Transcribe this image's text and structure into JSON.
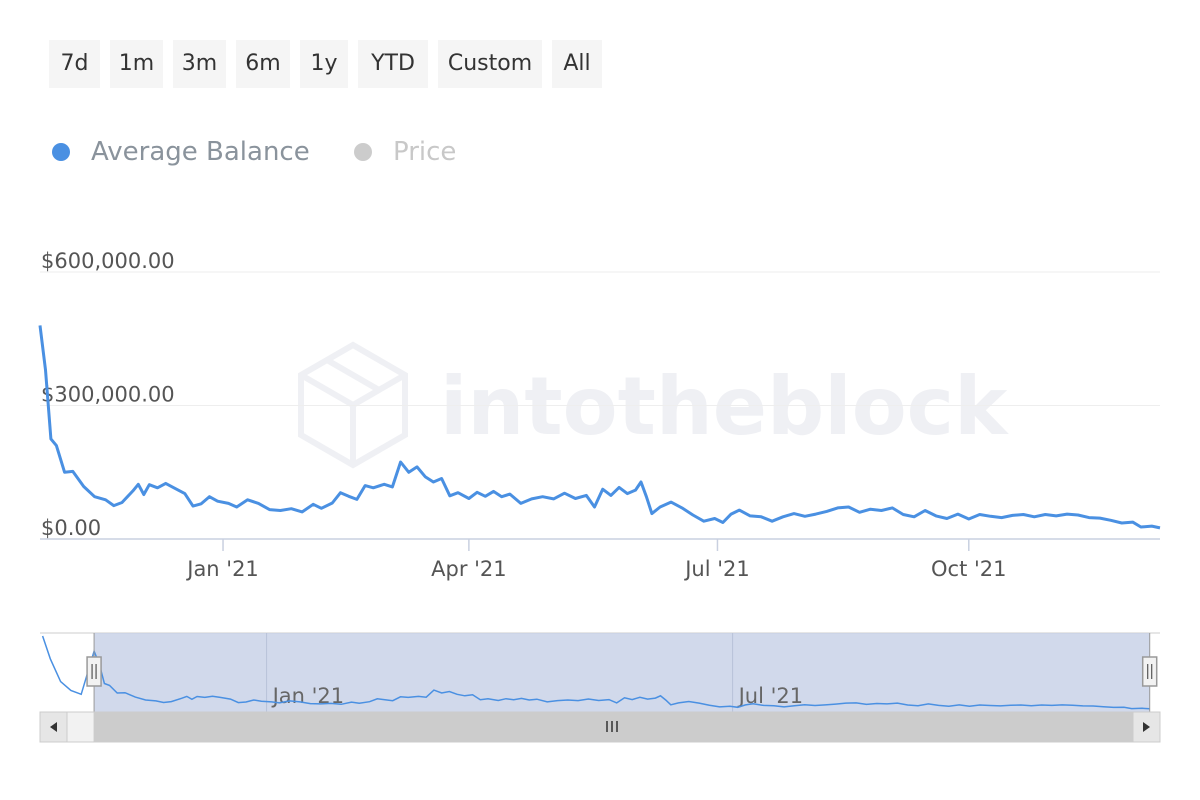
{
  "range_selector": {
    "buttons": [
      "7d",
      "1m",
      "3m",
      "6m",
      "1y",
      "YTD",
      "Custom",
      "All"
    ]
  },
  "legend": {
    "items": [
      {
        "label": "Average Balance",
        "color": "#4a90e2",
        "text_color": "#8a939c",
        "active": true
      },
      {
        "label": "Price",
        "color": "#cccccc",
        "text_color": "#c8c8c8",
        "active": false
      }
    ]
  },
  "watermark": "intotheblock",
  "chart_data": {
    "type": "line",
    "title": "",
    "xlabel": "",
    "ylabel": "",
    "grid": true,
    "legend_position": "top-left",
    "x_range": [
      "2020-10-26",
      "2021-12-10"
    ],
    "ylim": [
      0,
      600000
    ],
    "y_ticks": [
      {
        "value": 0,
        "label": "$0.00"
      },
      {
        "value": 300000,
        "label": "$300,000.00"
      },
      {
        "value": 600000,
        "label": "$600,000.00"
      }
    ],
    "x_ticks": [
      {
        "date": "2021-01-01",
        "label": "Jan '21"
      },
      {
        "date": "2021-04-01",
        "label": "Apr '21"
      },
      {
        "date": "2021-07-01",
        "label": "Jul '21"
      },
      {
        "date": "2021-10-01",
        "label": "Oct '21"
      }
    ],
    "series": [
      {
        "name": "Average Balance",
        "color": "#4a90e2",
        "points": [
          [
            "2020-10-26",
            480000
          ],
          [
            "2020-10-28",
            380000
          ],
          [
            "2020-10-30",
            225000
          ],
          [
            "2020-11-01",
            210000
          ],
          [
            "2020-11-04",
            150000
          ],
          [
            "2020-11-07",
            152000
          ],
          [
            "2020-11-11",
            118000
          ],
          [
            "2020-11-15",
            95000
          ],
          [
            "2020-11-19",
            88000
          ],
          [
            "2020-11-22",
            75000
          ],
          [
            "2020-11-25",
            82000
          ],
          [
            "2020-11-29",
            108000
          ],
          [
            "2020-12-01",
            123000
          ],
          [
            "2020-12-03",
            100000
          ],
          [
            "2020-12-05",
            122000
          ],
          [
            "2020-12-08",
            115000
          ],
          [
            "2020-12-11",
            125000
          ],
          [
            "2020-12-14",
            115000
          ],
          [
            "2020-12-18",
            102000
          ],
          [
            "2020-12-21",
            74000
          ],
          [
            "2020-12-24",
            79000
          ],
          [
            "2020-12-27",
            95000
          ],
          [
            "2020-12-30",
            85000
          ],
          [
            "2021-01-03",
            80000
          ],
          [
            "2021-01-06",
            72000
          ],
          [
            "2021-01-10",
            88000
          ],
          [
            "2021-01-14",
            80000
          ],
          [
            "2021-01-18",
            66000
          ],
          [
            "2021-01-22",
            64000
          ],
          [
            "2021-01-26",
            68000
          ],
          [
            "2021-01-30",
            61000
          ],
          [
            "2021-02-03",
            78000
          ],
          [
            "2021-02-06",
            69000
          ],
          [
            "2021-02-10",
            81000
          ],
          [
            "2021-02-13",
            104000
          ],
          [
            "2021-02-16",
            96000
          ],
          [
            "2021-02-19",
            89000
          ],
          [
            "2021-02-22",
            120000
          ],
          [
            "2021-02-25",
            115000
          ],
          [
            "2021-03-01",
            123000
          ],
          [
            "2021-03-04",
            117000
          ],
          [
            "2021-03-07",
            173000
          ],
          [
            "2021-03-10",
            150000
          ],
          [
            "2021-03-13",
            162000
          ],
          [
            "2021-03-16",
            140000
          ],
          [
            "2021-03-19",
            128000
          ],
          [
            "2021-03-22",
            136000
          ],
          [
            "2021-03-25",
            97000
          ],
          [
            "2021-03-28",
            104000
          ],
          [
            "2021-04-01",
            91000
          ],
          [
            "2021-04-04",
            105000
          ],
          [
            "2021-04-07",
            96000
          ],
          [
            "2021-04-10",
            107000
          ],
          [
            "2021-04-13",
            95000
          ],
          [
            "2021-04-16",
            101000
          ],
          [
            "2021-04-20",
            80000
          ],
          [
            "2021-04-24",
            90000
          ],
          [
            "2021-04-28",
            95000
          ],
          [
            "2021-05-02",
            90000
          ],
          [
            "2021-05-06",
            103000
          ],
          [
            "2021-05-10",
            91000
          ],
          [
            "2021-05-14",
            98000
          ],
          [
            "2021-05-17",
            72000
          ],
          [
            "2021-05-20",
            112000
          ],
          [
            "2021-05-23",
            98000
          ],
          [
            "2021-05-26",
            116000
          ],
          [
            "2021-05-29",
            102000
          ],
          [
            "2021-06-01",
            110000
          ],
          [
            "2021-06-03",
            128000
          ],
          [
            "2021-06-05",
            95000
          ],
          [
            "2021-06-07",
            57000
          ],
          [
            "2021-06-10",
            72000
          ],
          [
            "2021-06-14",
            83000
          ],
          [
            "2021-06-18",
            70000
          ],
          [
            "2021-06-22",
            54000
          ],
          [
            "2021-06-26",
            40000
          ],
          [
            "2021-06-30",
            46000
          ],
          [
            "2021-07-03",
            37000
          ],
          [
            "2021-07-06",
            56000
          ],
          [
            "2021-07-09",
            65000
          ],
          [
            "2021-07-13",
            52000
          ],
          [
            "2021-07-17",
            50000
          ],
          [
            "2021-07-21",
            40000
          ],
          [
            "2021-07-25",
            50000
          ],
          [
            "2021-07-29",
            57000
          ],
          [
            "2021-08-02",
            51000
          ],
          [
            "2021-08-06",
            56000
          ],
          [
            "2021-08-10",
            62000
          ],
          [
            "2021-08-14",
            70000
          ],
          [
            "2021-08-18",
            72000
          ],
          [
            "2021-08-22",
            60000
          ],
          [
            "2021-08-26",
            67000
          ],
          [
            "2021-08-30",
            64000
          ],
          [
            "2021-09-03",
            70000
          ],
          [
            "2021-09-07",
            55000
          ],
          [
            "2021-09-11",
            50000
          ],
          [
            "2021-09-15",
            64000
          ],
          [
            "2021-09-19",
            52000
          ],
          [
            "2021-09-23",
            46000
          ],
          [
            "2021-09-27",
            56000
          ],
          [
            "2021-10-01",
            45000
          ],
          [
            "2021-10-05",
            55000
          ],
          [
            "2021-10-09",
            51000
          ],
          [
            "2021-10-13",
            48000
          ],
          [
            "2021-10-17",
            53000
          ],
          [
            "2021-10-21",
            55000
          ],
          [
            "2021-10-25",
            50000
          ],
          [
            "2021-10-29",
            55000
          ],
          [
            "2021-11-02",
            52000
          ],
          [
            "2021-11-06",
            56000
          ],
          [
            "2021-11-10",
            54000
          ],
          [
            "2021-11-14",
            48000
          ],
          [
            "2021-11-18",
            47000
          ],
          [
            "2021-11-22",
            42000
          ],
          [
            "2021-11-26",
            36000
          ],
          [
            "2021-11-30",
            38000
          ],
          [
            "2021-12-03",
            27000
          ],
          [
            "2021-12-07",
            29000
          ],
          [
            "2021-12-10",
            25000
          ]
        ]
      }
    ],
    "navigator": {
      "x_range": [
        "2020-10-05",
        "2021-12-14"
      ],
      "selection": [
        "2020-10-26",
        "2021-12-10"
      ],
      "ticks": [
        {
          "date": "2021-01-01",
          "label": "Jan '21"
        },
        {
          "date": "2021-07-01",
          "label": "Jul '21"
        }
      ],
      "lead_in_points": [
        [
          "2020-10-06",
          600000
        ],
        [
          "2020-10-09",
          420000
        ],
        [
          "2020-10-13",
          240000
        ],
        [
          "2020-10-17",
          170000
        ],
        [
          "2020-10-21",
          140000
        ],
        [
          "2020-10-26",
          480000
        ]
      ]
    }
  }
}
